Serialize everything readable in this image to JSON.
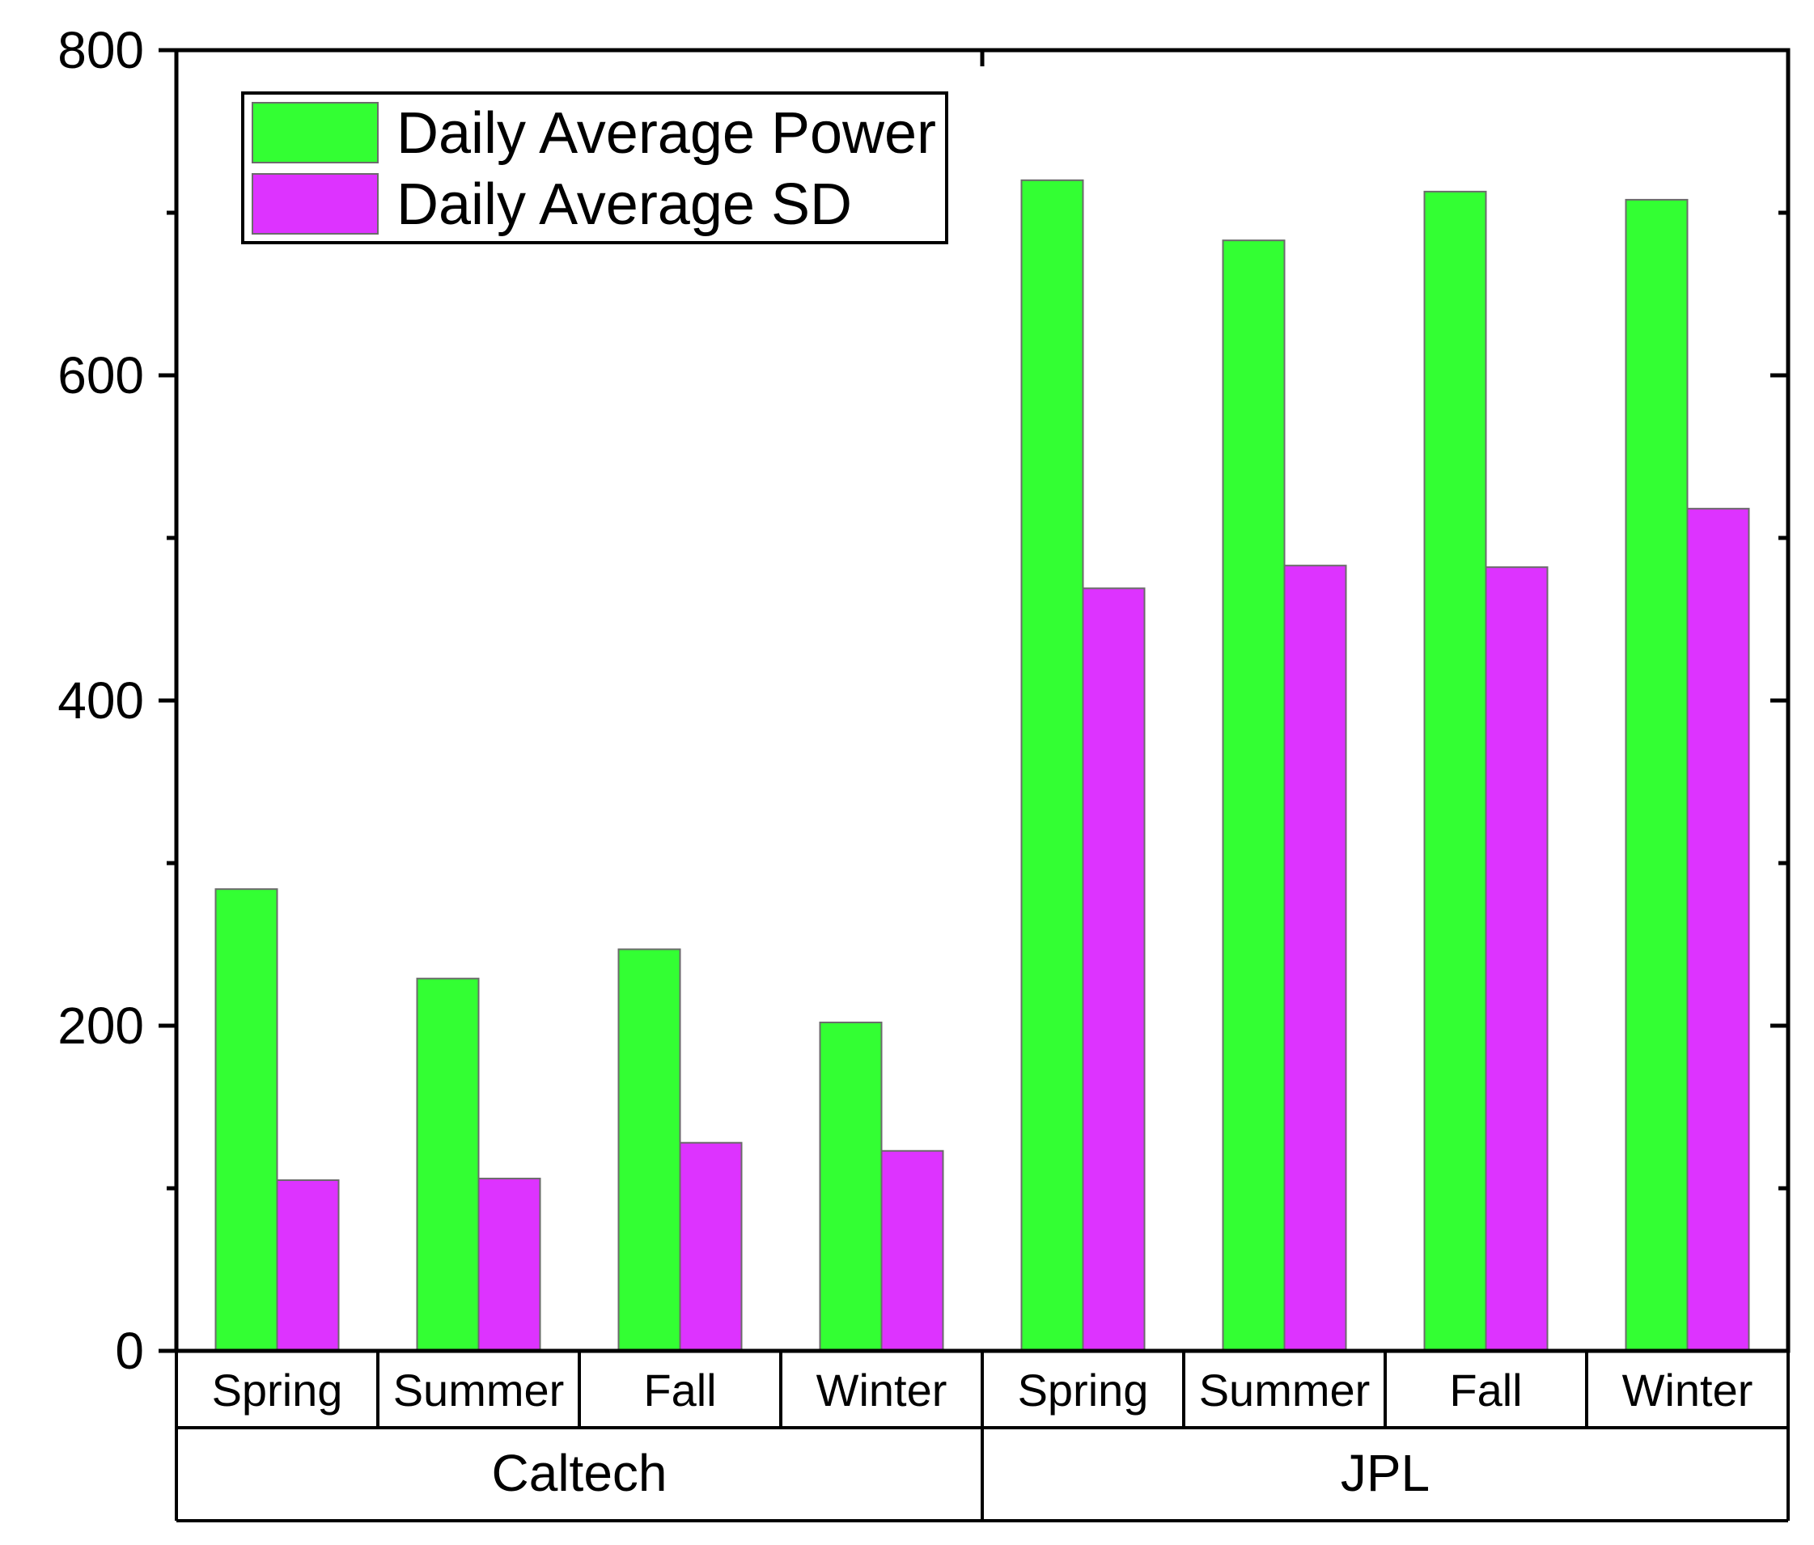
{
  "chart_data": {
    "type": "bar",
    "title": "",
    "xlabel": "",
    "ylabel": "",
    "ylim": [
      0,
      800
    ],
    "yticks": [
      0,
      200,
      400,
      600,
      800
    ],
    "minor_yticks": [
      100,
      300,
      500,
      700
    ],
    "categories": [
      "Spring",
      "Summer",
      "Fall",
      "Winter",
      "Spring",
      "Summer",
      "Fall",
      "Winter"
    ],
    "groups": [
      {
        "name": "Caltech",
        "categories": [
          "Spring",
          "Summer",
          "Fall",
          "Winter"
        ]
      },
      {
        "name": "JPL",
        "categories": [
          "Spring",
          "Summer",
          "Fall",
          "Winter"
        ]
      }
    ],
    "series": [
      {
        "name": "Daily Average Power",
        "color": "#33ff33",
        "values": [
          284,
          229,
          247,
          202,
          720,
          683,
          713,
          708
        ]
      },
      {
        "name": "Daily Average SD",
        "color": "#dd33ff",
        "values": [
          105,
          106,
          128,
          123,
          469,
          483,
          482,
          518
        ]
      }
    ],
    "legend": {
      "placement": "top-left"
    }
  }
}
